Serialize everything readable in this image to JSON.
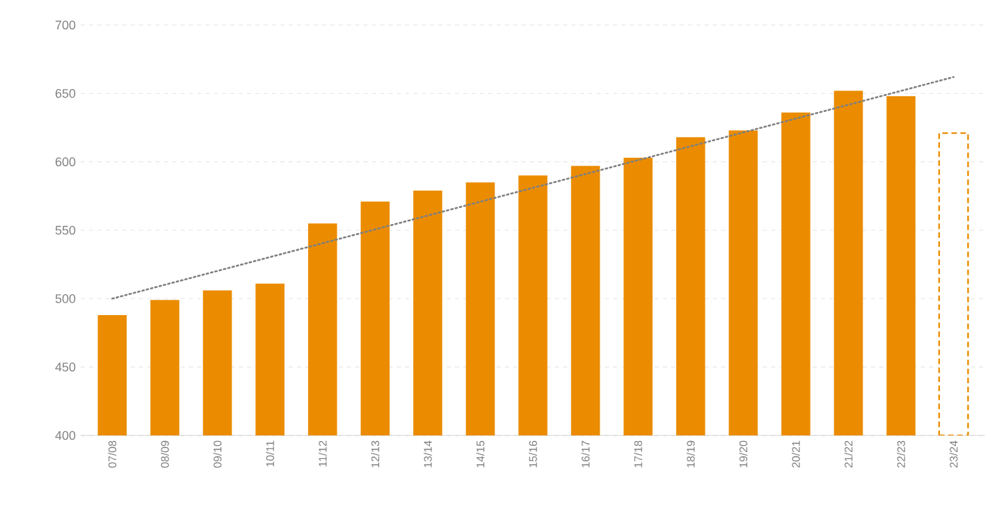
{
  "chart_data": {
    "type": "bar",
    "categories": [
      "07/08",
      "08/09",
      "09/10",
      "10/11",
      "11/12",
      "12/13",
      "13/14",
      "14/15",
      "15/16",
      "16/17",
      "17/18",
      "18/19",
      "19/20",
      "20/21",
      "21/22",
      "22/23",
      "23/24"
    ],
    "series": [
      {
        "color": "#eb8c00",
        "line_style": "solid",
        "values": [
          488,
          499,
          506,
          511,
          555,
          571,
          579,
          585,
          590,
          597,
          603,
          618,
          623,
          636,
          652,
          648,
          null
        ]
      },
      {
        "color": "#eb8c00",
        "line_style": "dashed",
        "values": [
          null,
          null,
          null,
          null,
          null,
          null,
          null,
          null,
          null,
          null,
          null,
          null,
          null,
          null,
          null,
          null,
          621
        ]
      },
      {
        "type": "line",
        "color": "#7f7f7f",
        "line_style": "dotted",
        "marker": "none",
        "values": [
          500,
          null,
          null,
          null,
          null,
          null,
          null,
          null,
          null,
          null,
          null,
          null,
          null,
          null,
          null,
          null,
          662
        ]
      }
    ],
    "ylim": [
      400,
      700
    ],
    "yticks": [
      400,
      450,
      500,
      550,
      600,
      650,
      700
    ],
    "grid": "y"
  }
}
